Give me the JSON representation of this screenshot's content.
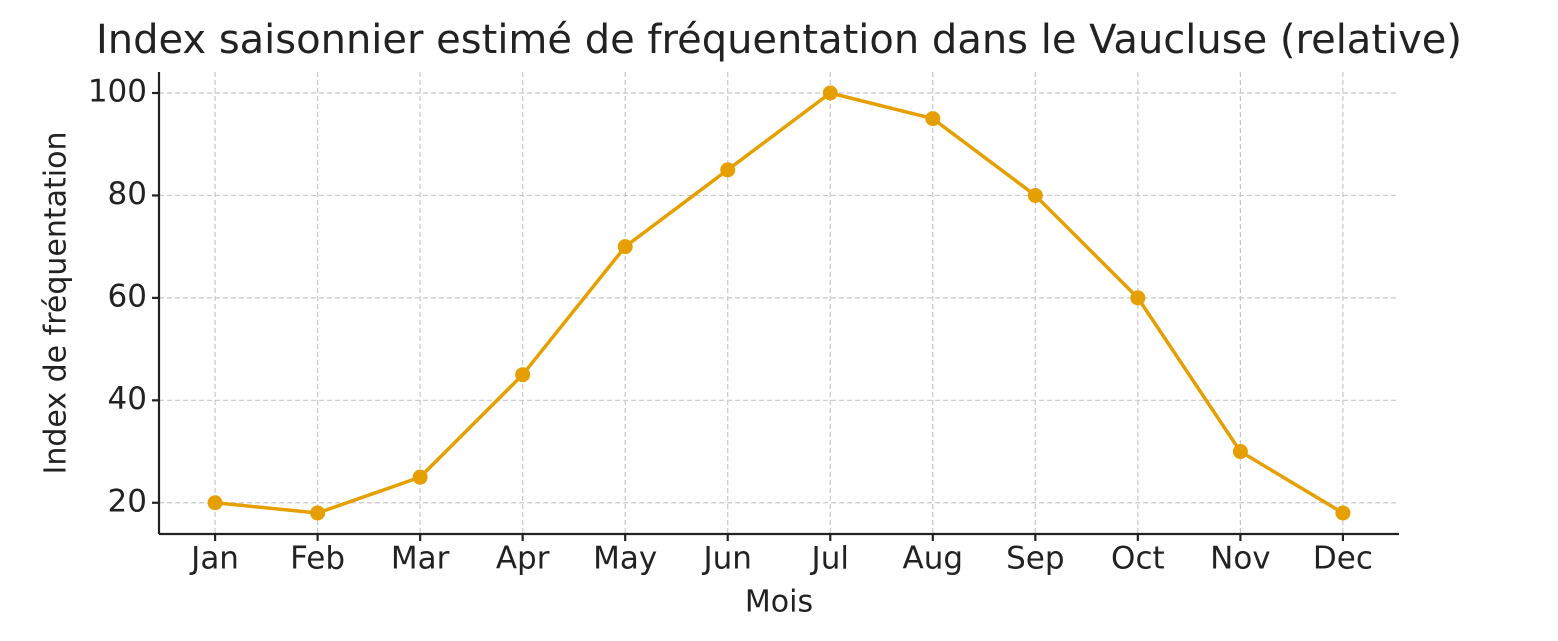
{
  "chart_data": {
    "type": "line",
    "title": "Index saisonnier estimé de fréquentation dans le Vaucluse (relative)",
    "x_label": "Mois",
    "y_label": "Index de fréquentation",
    "categories": [
      "Jan",
      "Feb",
      "Mar",
      "Apr",
      "May",
      "Jun",
      "Jul",
      "Aug",
      "Sep",
      "Oct",
      "Nov",
      "Dec"
    ],
    "series": [
      {
        "name": "Index",
        "color": "#e69f00",
        "values": [
          20,
          18,
          25,
          45,
          70,
          85,
          100,
          95,
          80,
          60,
          30,
          18
        ]
      }
    ],
    "ylim": [
      13.9,
      104.1
    ],
    "yticks": [
      20,
      40,
      60,
      80,
      100
    ],
    "grid": true
  }
}
